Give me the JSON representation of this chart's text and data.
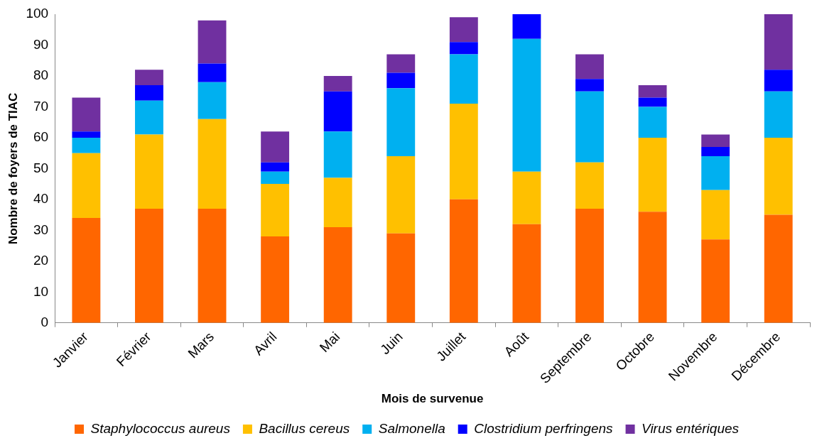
{
  "chart_data": {
    "type": "bar",
    "stacked": true,
    "xlabel": "Mois de survenue",
    "ylabel": "Nombre de foyers de TIAC",
    "categories": [
      "Janvier",
      "Février",
      "Mars",
      "Avril",
      "Mai",
      "Juin",
      "Juillet",
      "Août",
      "Septembre",
      "Octobre",
      "Novembre",
      "Décembre"
    ],
    "series": [
      {
        "name": "Staphylococcus aureus",
        "color": "#ff6600",
        "values": [
          34,
          37,
          37,
          28,
          31,
          29,
          40,
          32,
          37,
          36,
          27,
          35
        ]
      },
      {
        "name": "Bacillus cereus",
        "color": "#ffc000",
        "values": [
          21,
          24,
          29,
          17,
          16,
          25,
          31,
          17,
          15,
          24,
          16,
          25
        ]
      },
      {
        "name": "Salmonella",
        "color": "#00b0f0",
        "values": [
          5,
          11,
          12,
          4,
          15,
          22,
          16,
          43,
          23,
          10,
          11,
          15
        ]
      },
      {
        "name": "Clostridium perfringens",
        "color": "#0000ff",
        "values": [
          2,
          5,
          6,
          3,
          13,
          5,
          4,
          8,
          4,
          3,
          3,
          7
        ]
      },
      {
        "name": "Virus entériques",
        "color": "#7030a0",
        "values": [
          11,
          5,
          14,
          10,
          5,
          6,
          8,
          null,
          8,
          4,
          4,
          18
        ]
      }
    ],
    "ylim": [
      0,
      100
    ],
    "yticks": [
      0,
      10,
      20,
      30,
      40,
      50,
      60,
      70,
      80,
      90,
      100
    ],
    "grid": false,
    "legend": "bottom"
  }
}
